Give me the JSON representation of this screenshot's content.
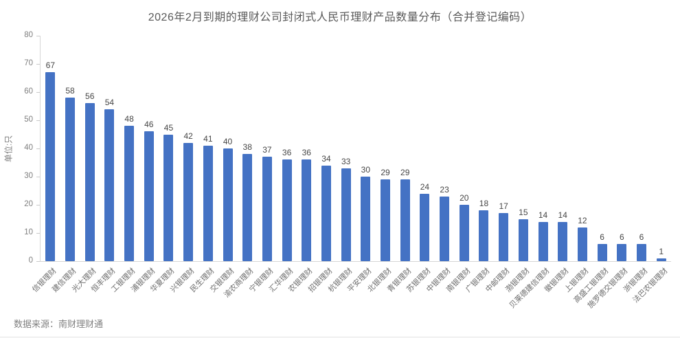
{
  "chart_data": {
    "type": "bar",
    "title": "2026年2月到期的理财公司封闭式人民币理财产品数量分布（合并登记编码）",
    "xlabel": "",
    "ylabel": "单位:只",
    "categories": [
      "信银理财",
      "建信理财",
      "光大理财",
      "恒丰理财",
      "工银理财",
      "浦银理财",
      "华夏理财",
      "兴银理财",
      "民生理财",
      "交银理财",
      "渝农商理财",
      "宁银理财",
      "汇华理财",
      "农银理财",
      "招银理财",
      "杭银理财",
      "平安理财",
      "北银理财",
      "青银理财",
      "苏银理财",
      "中银理财",
      "南银理财",
      "广银理财",
      "中邮理财",
      "渤银理财",
      "贝莱德建信理财",
      "徽银理财",
      "上银理财",
      "高盛工银理财",
      "施罗德交银理财",
      "浙银理财",
      "法巴农银理财"
    ],
    "values": [
      67,
      58,
      56,
      54,
      48,
      46,
      45,
      42,
      41,
      40,
      38,
      37,
      36,
      36,
      34,
      33,
      30,
      29,
      29,
      24,
      23,
      20,
      18,
      17,
      15,
      14,
      14,
      12,
      6,
      6,
      6,
      1
    ],
    "ylim": [
      0,
      80
    ],
    "yticks": [
      0,
      10,
      20,
      30,
      40,
      50,
      60,
      70,
      80
    ],
    "grid": false,
    "legend_position": "none",
    "bar_color": "#4472C4",
    "background_color": "#ffffff",
    "data_labels": true
  },
  "footer": {
    "source": "数据来源：南财理财通"
  }
}
